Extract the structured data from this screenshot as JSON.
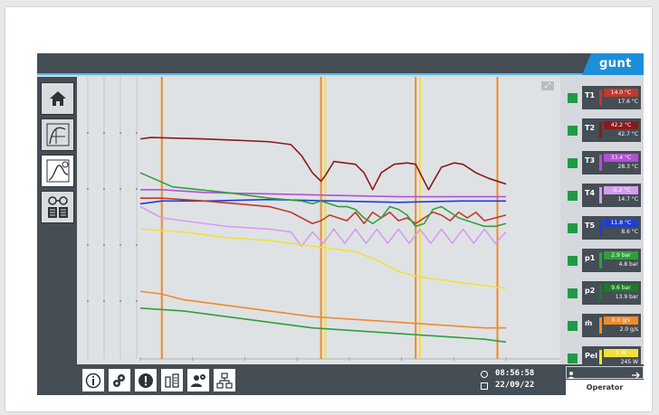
{
  "header": {
    "logo_text": "gunt"
  },
  "nav": {
    "items": [
      {
        "name": "home",
        "icon": "home-icon",
        "active": false
      },
      {
        "name": "diagram",
        "icon": "p-v-diagram-icon",
        "active": false
      },
      {
        "name": "trend",
        "icon": "trend-chart-icon",
        "active": true
      },
      {
        "name": "info",
        "icon": "glasses-book-icon",
        "active": false
      }
    ]
  },
  "sensors": [
    {
      "symbol": "T1",
      "value": "14.0 °C",
      "secondary": "17.6 °C",
      "color": "#c0392b"
    },
    {
      "symbol": "T2",
      "value": "42.2 °C",
      "secondary": "42.7 °C",
      "color": "#8b1a1a"
    },
    {
      "symbol": "T3",
      "value": "33.4 °C",
      "secondary": "28.3 °C",
      "color": "#b44fd8"
    },
    {
      "symbol": "T4",
      "value": "-5.2 °C",
      "secondary": "14.7 °C",
      "color": "#d59cf0"
    },
    {
      "symbol": "T5",
      "value": "11.8 °C",
      "secondary": "8.6 °C",
      "color": "#1f3fd1"
    },
    {
      "symbol": "p1",
      "value": "2.9 bar",
      "secondary": "4.8 bar",
      "color": "#2fa03a"
    },
    {
      "symbol": "p2",
      "value": "9.6 bar",
      "secondary": "13.9 bar",
      "color": "#1d7a2c"
    },
    {
      "symbol": "ṁ",
      "value": "0.0 g/s",
      "secondary": "2.0 g/s",
      "color": "#f08a2b"
    },
    {
      "symbol": "Pel",
      "value": "1 W",
      "secondary": "245 W",
      "color": "#f2e03a"
    }
  ],
  "bottom": {
    "buttons": [
      {
        "name": "info-button",
        "icon": "info-icon"
      },
      {
        "name": "settings-button",
        "icon": "gears-icon"
      },
      {
        "name": "alarm-button",
        "icon": "alarm-icon"
      },
      {
        "name": "data-button",
        "icon": "data-export-icon"
      },
      {
        "name": "user-settings-button",
        "icon": "user-gear-icon"
      },
      {
        "name": "network-button",
        "icon": "network-icon"
      }
    ],
    "time": "08:56:58",
    "date": "22/09/22",
    "user": "Operator"
  },
  "chart_data": {
    "type": "line",
    "title": "",
    "xlabel": "",
    "ylabel": "",
    "grid": true,
    "note": "values in normalized units 0-100 (axis tick labels are illegible); x spans 0-100",
    "series": [
      {
        "color": "#8b1a1a",
        "x": [
          0,
          5,
          30,
          60,
          70,
          75,
          80,
          84,
          86,
          90,
          95,
          100,
          104,
          108,
          112,
          118,
          124,
          128,
          130,
          134,
          140,
          146,
          150,
          152,
          156,
          162,
          166,
          170
        ],
        "y": [
          78,
          78.5,
          78,
          77,
          76,
          72,
          66,
          63,
          65,
          70,
          69.5,
          69,
          66,
          60,
          66,
          69,
          69.5,
          69,
          66,
          60,
          68,
          69.5,
          69,
          68,
          66,
          64,
          63,
          62
        ]
      },
      {
        "color": "#b44fd8",
        "x": [
          0,
          10,
          30,
          60,
          90,
          120,
          150,
          170
        ],
        "y": [
          60,
          60,
          59,
          58.5,
          58,
          57.5,
          57.5,
          57.5
        ]
      },
      {
        "color": "#1f3fd1",
        "x": [
          0,
          10,
          30,
          60,
          90,
          120,
          150,
          170
        ],
        "y": [
          55,
          56,
          56,
          56.5,
          56,
          55.5,
          56,
          56
        ]
      },
      {
        "color": "#d59cf0",
        "x": [
          0,
          10,
          20,
          30,
          40,
          60,
          70,
          75,
          80,
          85,
          90,
          95,
          100,
          105,
          110,
          115,
          120,
          125,
          130,
          135,
          140,
          145,
          150,
          155,
          160,
          165,
          170
        ],
        "y": [
          54,
          50,
          49,
          48,
          47,
          46,
          45,
          40,
          45,
          41,
          46,
          41,
          46,
          41,
          46,
          41,
          46,
          41,
          46,
          41,
          46,
          41,
          46,
          41,
          46,
          41,
          45
        ]
      },
      {
        "color": "#c0392b",
        "x": [
          0,
          5,
          10,
          30,
          60,
          70,
          75,
          80,
          84,
          88,
          92,
          96,
          100,
          104,
          108,
          112,
          116,
          120,
          124,
          128,
          132,
          136,
          140,
          144,
          148,
          152,
          156,
          160,
          165,
          170
        ],
        "y": [
          57,
          57,
          57,
          56,
          54,
          52,
          50,
          48,
          49,
          51,
          50,
          49,
          52,
          48,
          52,
          50,
          52,
          49,
          50,
          48,
          50,
          52,
          51,
          49,
          52,
          50,
          52,
          49,
          50,
          51
        ]
      },
      {
        "color": "#2fa03a",
        "x": [
          0,
          3,
          6,
          9,
          12,
          15,
          40,
          60,
          75,
          80,
          84,
          88,
          92,
          96,
          100,
          104,
          108,
          112,
          116,
          120,
          124,
          128,
          132,
          136,
          140,
          144,
          148,
          152,
          156,
          160,
          165,
          170
        ],
        "y": [
          66,
          65,
          64,
          63,
          62,
          61,
          59,
          57,
          56,
          55,
          56,
          55,
          54,
          54,
          53,
          50,
          48,
          50,
          54,
          53,
          51,
          47,
          48,
          53,
          54,
          52,
          50,
          49,
          48,
          47,
          47,
          48
        ]
      },
      {
        "color": "#f2e03a",
        "x": [
          0,
          20,
          40,
          60,
          80,
          100,
          110,
          120,
          130,
          140,
          150,
          160,
          170
        ],
        "y": [
          46,
          45,
          43,
          42,
          40,
          38,
          35,
          31,
          29,
          28,
          27,
          26,
          25
        ]
      },
      {
        "color": "#f08a2b",
        "x": [
          0,
          10,
          20,
          40,
          60,
          80,
          100,
          120,
          140,
          160,
          170
        ],
        "y": [
          24,
          23,
          21,
          19,
          17,
          15,
          14,
          13,
          12,
          11,
          11
        ]
      },
      {
        "color": "#2fa03a",
        "x": [
          0,
          20,
          40,
          60,
          80,
          100,
          120,
          140,
          160,
          170
        ],
        "y": [
          18,
          17,
          15,
          13,
          11,
          10,
          9,
          8,
          7,
          6
        ]
      }
    ]
  }
}
